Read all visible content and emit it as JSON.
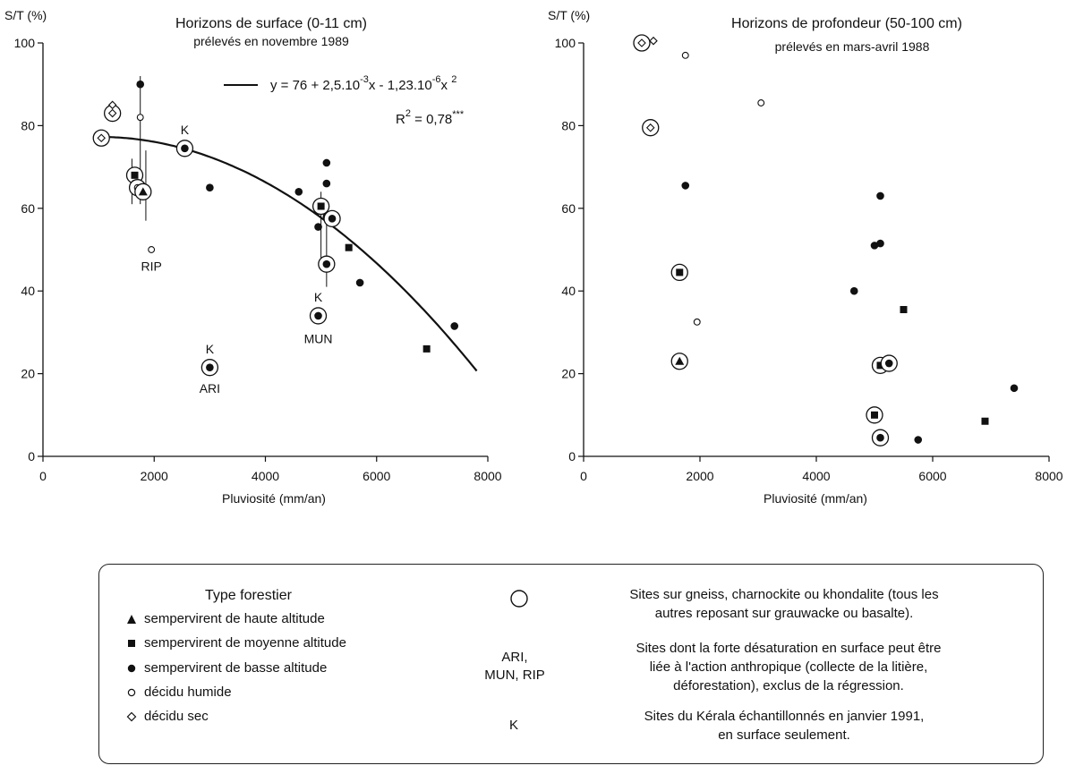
{
  "chart_data": [
    {
      "type": "scatter",
      "title": "Horizons de surface (0-11 cm)",
      "subtitle": "prélevés en novembre 1989",
      "ylabel": "S/T (%)",
      "xlabel": "Pluviosité (mm/an)",
      "xlim": [
        0,
        8000
      ],
      "ylim": [
        0,
        100
      ],
      "xticks": [
        0,
        2000,
        4000,
        6000,
        8000
      ],
      "yticks": [
        0,
        20,
        40,
        60,
        80,
        100
      ],
      "equation": "y = 76 + 2,5.10⁻³x - 1,23.10⁻⁶x²",
      "r2": "R² = 0,78***",
      "fit_curve": {
        "intercept": 76,
        "b": 0.0025,
        "c": -1.23e-06,
        "x_range": [
          1000,
          7800
        ]
      },
      "points": [
        {
          "x": 1050,
          "y": 77,
          "marker": "diamond",
          "circled": true
        },
        {
          "x": 1250,
          "y": 83,
          "marker": "diamond",
          "circled": true
        },
        {
          "x": 1250,
          "y": 85,
          "marker": "diamond",
          "circled": false
        },
        {
          "x": 1650,
          "y": 68,
          "marker": "square",
          "circled": true
        },
        {
          "x": 1650,
          "y": 66,
          "marker": "circle-filled",
          "circled": false
        },
        {
          "x": 1700,
          "y": 65,
          "marker": "circle-open",
          "circled": true
        },
        {
          "x": 1750,
          "y": 90,
          "marker": "circle-filled",
          "circled": false
        },
        {
          "x": 1750,
          "y": 82,
          "marker": "circle-open",
          "circled": false
        },
        {
          "x": 1800,
          "y": 64,
          "marker": "triangle",
          "circled": true
        },
        {
          "x": 1950,
          "y": 50,
          "marker": "circle-open",
          "circled": false
        },
        {
          "x": 2550,
          "y": 74.5,
          "marker": "circle-filled",
          "circled": true
        },
        {
          "x": 3000,
          "y": 65,
          "marker": "circle-filled",
          "circled": false
        },
        {
          "x": 3000,
          "y": 21.5,
          "marker": "circle-filled",
          "circled": true
        },
        {
          "x": 4600,
          "y": 64,
          "marker": "circle-filled",
          "circled": false
        },
        {
          "x": 4950,
          "y": 34,
          "marker": "circle-filled",
          "circled": true
        },
        {
          "x": 5000,
          "y": 60.5,
          "marker": "square",
          "circled": true
        },
        {
          "x": 4950,
          "y": 55.5,
          "marker": "circle-filled",
          "circled": false
        },
        {
          "x": 5100,
          "y": 71,
          "marker": "circle-filled",
          "circled": false
        },
        {
          "x": 5100,
          "y": 66,
          "marker": "circle-filled",
          "circled": false
        },
        {
          "x": 5100,
          "y": 58,
          "marker": "circle-filled",
          "circled": false
        },
        {
          "x": 5100,
          "y": 46.5,
          "marker": "circle-filled",
          "circled": true
        },
        {
          "x": 5200,
          "y": 57.5,
          "marker": "circle-filled",
          "circled": true
        },
        {
          "x": 5500,
          "y": 50.5,
          "marker": "square",
          "circled": false
        },
        {
          "x": 5700,
          "y": 42,
          "marker": "circle-filled",
          "circled": false
        },
        {
          "x": 6900,
          "y": 26,
          "marker": "square",
          "circled": false
        },
        {
          "x": 7400,
          "y": 31.5,
          "marker": "circle-filled",
          "circled": false
        }
      ],
      "error_bars": [
        {
          "x": 1750,
          "y_min": 61,
          "y_max": 92
        },
        {
          "x": 1850,
          "y_min": 57,
          "y_max": 74
        },
        {
          "x": 1600,
          "y_min": 61,
          "y_max": 72
        },
        {
          "x": 5000,
          "y_min": 45,
          "y_max": 64
        },
        {
          "x": 5100,
          "y_min": 41,
          "y_max": 62
        }
      ],
      "annotations": [
        {
          "text": "K",
          "x": 2550,
          "y": 79
        },
        {
          "text": "RIP",
          "x": 1950,
          "y": 46
        },
        {
          "text": "K",
          "x": 3000,
          "y": 26
        },
        {
          "text": "ARI",
          "x": 3000,
          "y": 16.5
        },
        {
          "text": "K",
          "x": 4950,
          "y": 38.5
        },
        {
          "text": "MUN",
          "x": 4950,
          "y": 28.5
        }
      ]
    },
    {
      "type": "scatter",
      "title": "Horizons de profondeur (50-100 cm)",
      "subtitle": "prélevés en mars-avril 1988",
      "ylabel": "S/T (%)",
      "xlabel": "Pluviosité (mm/an)",
      "xlim": [
        0,
        8000
      ],
      "ylim": [
        0,
        100
      ],
      "xticks": [
        0,
        2000,
        4000,
        6000,
        8000
      ],
      "yticks": [
        0,
        20,
        40,
        60,
        80,
        100
      ],
      "points": [
        {
          "x": 1000,
          "y": 100,
          "marker": "diamond",
          "circled": true
        },
        {
          "x": 1200,
          "y": 100.5,
          "marker": "diamond",
          "circled": false
        },
        {
          "x": 1150,
          "y": 79.5,
          "marker": "diamond",
          "circled": true
        },
        {
          "x": 1750,
          "y": 97,
          "marker": "circle-open",
          "circled": false
        },
        {
          "x": 3050,
          "y": 85.5,
          "marker": "circle-open",
          "circled": false
        },
        {
          "x": 1750,
          "y": 65.5,
          "marker": "circle-filled",
          "circled": false
        },
        {
          "x": 1650,
          "y": 44.5,
          "marker": "square",
          "circled": true
        },
        {
          "x": 1950,
          "y": 32.5,
          "marker": "circle-open",
          "circled": false
        },
        {
          "x": 1650,
          "y": 23,
          "marker": "triangle",
          "circled": true
        },
        {
          "x": 4650,
          "y": 40,
          "marker": "circle-filled",
          "circled": false
        },
        {
          "x": 5000,
          "y": 51,
          "marker": "circle-filled",
          "circled": false
        },
        {
          "x": 5100,
          "y": 51.5,
          "marker": "circle-filled",
          "circled": false
        },
        {
          "x": 5100,
          "y": 63,
          "marker": "circle-filled",
          "circled": false
        },
        {
          "x": 5500,
          "y": 35.5,
          "marker": "square",
          "circled": false
        },
        {
          "x": 5100,
          "y": 22,
          "marker": "square",
          "circled": true
        },
        {
          "x": 5250,
          "y": 22.5,
          "marker": "circle-filled",
          "circled": true
        },
        {
          "x": 5000,
          "y": 10,
          "marker": "square",
          "circled": true
        },
        {
          "x": 5100,
          "y": 4.5,
          "marker": "circle-filled",
          "circled": true
        },
        {
          "x": 5750,
          "y": 4,
          "marker": "circle-filled",
          "circled": false
        },
        {
          "x": 6900,
          "y": 8.5,
          "marker": "square",
          "circled": false
        },
        {
          "x": 7400,
          "y": 16.5,
          "marker": "circle-filled",
          "circled": false
        }
      ]
    }
  ],
  "legend": {
    "title": "Type forestier",
    "items": [
      {
        "marker": "triangle",
        "label": "sempervirent de  haute altitude"
      },
      {
        "marker": "square",
        "label": "sempervirent de  moyenne altitude"
      },
      {
        "marker": "circle-filled",
        "label": "sempervirent de  basse altitude"
      },
      {
        "marker": "circle-open",
        "label": "décidu humide"
      },
      {
        "marker": "diamond",
        "label": "décidu sec"
      }
    ],
    "notes": [
      {
        "key": "○",
        "line1": "Sites sur gneiss, charnockite ou khondalite (tous les",
        "line2": "autres reposant sur grauwacke ou basalte)."
      },
      {
        "key": "ARI, MUN, RIP",
        "key1": "ARI,",
        "key2": "MUN, RIP",
        "line1": "Sites dont la forte désaturation en surface peut être",
        "line2": "liée à l'action anthropique (collecte de la litière,",
        "line3": "déforestation), exclus de la régression."
      },
      {
        "key": "K",
        "line1": "Sites du Kérala  échantillonnés en janvier 1991,",
        "line2": "en surface seulement."
      }
    ]
  }
}
